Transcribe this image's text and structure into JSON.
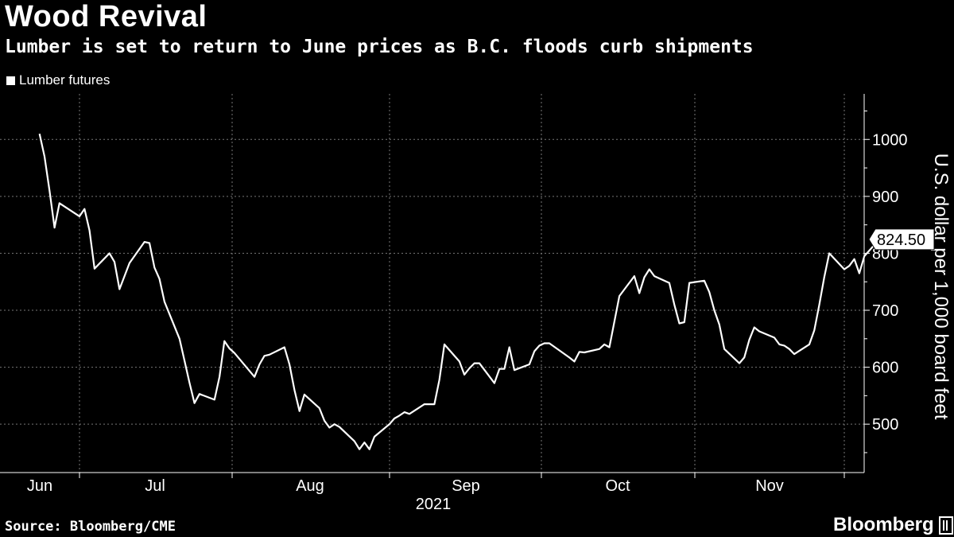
{
  "title": "Wood Revival",
  "subtitle": "Lumber is set to return to June prices as B.C. floods curb shipments",
  "source": "Source: Bloomberg/CME",
  "brand": "Bloomberg",
  "chart_data": {
    "type": "line",
    "title": "Wood Revival",
    "ylabel": "U.S. dollar per 1,000 board feet",
    "xlabel": "2021",
    "year_label": "2021",
    "ylim": [
      415,
      1080
    ],
    "yticks": [
      500,
      600,
      700,
      800,
      900,
      1000
    ],
    "x_month_labels": [
      "Jun",
      "Jul",
      "Aug",
      "Sep",
      "Oct",
      "Nov"
    ],
    "grid": true,
    "legend_position": "top-left",
    "last_value_label": "824.50",
    "series": [
      {
        "name": "Lumber futures",
        "color": "#ffffff",
        "points": [
          [
            "2021-05-24",
            1010
          ],
          [
            "2021-05-25",
            970
          ],
          [
            "2021-05-26",
            910
          ],
          [
            "2021-05-27",
            845
          ],
          [
            "2021-05-28",
            888
          ],
          [
            "2021-06-01",
            865
          ],
          [
            "2021-06-02",
            878
          ],
          [
            "2021-06-03",
            840
          ],
          [
            "2021-06-04",
            773
          ],
          [
            "2021-06-07",
            800
          ],
          [
            "2021-06-08",
            785
          ],
          [
            "2021-06-09",
            737
          ],
          [
            "2021-06-10",
            760
          ],
          [
            "2021-06-11",
            783
          ],
          [
            "2021-06-14",
            820
          ],
          [
            "2021-06-15",
            818
          ],
          [
            "2021-06-16",
            775
          ],
          [
            "2021-06-17",
            755
          ],
          [
            "2021-06-18",
            715
          ],
          [
            "2021-06-21",
            650
          ],
          [
            "2021-06-22",
            612
          ],
          [
            "2021-06-23",
            573
          ],
          [
            "2021-06-24",
            537
          ],
          [
            "2021-06-25",
            553
          ],
          [
            "2021-06-28",
            543
          ],
          [
            "2021-06-29",
            583
          ],
          [
            "2021-06-30",
            646
          ],
          [
            "2021-07-01",
            633
          ],
          [
            "2021-07-02",
            625
          ],
          [
            "2021-07-06",
            583
          ],
          [
            "2021-07-07",
            605
          ],
          [
            "2021-07-08",
            620
          ],
          [
            "2021-07-09",
            622
          ],
          [
            "2021-07-12",
            635
          ],
          [
            "2021-07-13",
            605
          ],
          [
            "2021-07-14",
            560
          ],
          [
            "2021-07-15",
            523
          ],
          [
            "2021-07-16",
            552
          ],
          [
            "2021-07-19",
            528
          ],
          [
            "2021-07-20",
            506
          ],
          [
            "2021-07-21",
            494
          ],
          [
            "2021-07-22",
            500
          ],
          [
            "2021-07-23",
            495
          ],
          [
            "2021-07-26",
            470
          ],
          [
            "2021-07-27",
            456
          ],
          [
            "2021-07-28",
            468
          ],
          [
            "2021-07-29",
            456
          ],
          [
            "2021-07-30",
            478
          ],
          [
            "2021-08-02",
            500
          ],
          [
            "2021-08-03",
            510
          ],
          [
            "2021-08-04",
            515
          ],
          [
            "2021-08-05",
            521
          ],
          [
            "2021-08-06",
            518
          ],
          [
            "2021-08-09",
            535
          ],
          [
            "2021-08-10",
            535
          ],
          [
            "2021-08-11",
            535
          ],
          [
            "2021-08-12",
            578
          ],
          [
            "2021-08-13",
            640
          ],
          [
            "2021-08-16",
            610
          ],
          [
            "2021-08-17",
            587
          ],
          [
            "2021-08-18",
            598
          ],
          [
            "2021-08-19",
            607
          ],
          [
            "2021-08-20",
            607
          ],
          [
            "2021-08-23",
            572
          ],
          [
            "2021-08-24",
            597
          ],
          [
            "2021-08-25",
            597
          ],
          [
            "2021-08-26",
            635
          ],
          [
            "2021-08-27",
            595
          ],
          [
            "2021-08-30",
            605
          ],
          [
            "2021-08-31",
            628
          ],
          [
            "2021-09-01",
            638
          ],
          [
            "2021-09-02",
            642
          ],
          [
            "2021-09-03",
            642
          ],
          [
            "2021-09-07",
            617
          ],
          [
            "2021-09-08",
            610
          ],
          [
            "2021-09-09",
            627
          ],
          [
            "2021-09-10",
            626
          ],
          [
            "2021-09-13",
            632
          ],
          [
            "2021-09-14",
            640
          ],
          [
            "2021-09-15",
            635
          ],
          [
            "2021-09-16",
            680
          ],
          [
            "2021-09-17",
            725
          ],
          [
            "2021-09-20",
            760
          ],
          [
            "2021-09-21",
            730
          ],
          [
            "2021-09-22",
            758
          ],
          [
            "2021-09-23",
            772
          ],
          [
            "2021-09-24",
            760
          ],
          [
            "2021-09-27",
            748
          ],
          [
            "2021-09-28",
            710
          ],
          [
            "2021-09-29",
            677
          ],
          [
            "2021-09-30",
            679
          ],
          [
            "2021-10-01",
            748
          ],
          [
            "2021-10-04",
            752
          ],
          [
            "2021-10-05",
            732
          ],
          [
            "2021-10-06",
            700
          ],
          [
            "2021-10-07",
            675
          ],
          [
            "2021-10-08",
            632
          ],
          [
            "2021-10-11",
            607
          ],
          [
            "2021-10-12",
            617
          ],
          [
            "2021-10-13",
            648
          ],
          [
            "2021-10-14",
            670
          ],
          [
            "2021-10-15",
            663
          ],
          [
            "2021-10-18",
            652
          ],
          [
            "2021-10-19",
            640
          ],
          [
            "2021-10-20",
            638
          ],
          [
            "2021-10-21",
            632
          ],
          [
            "2021-10-22",
            623
          ],
          [
            "2021-10-25",
            640
          ],
          [
            "2021-10-26",
            665
          ],
          [
            "2021-10-27",
            710
          ],
          [
            "2021-10-28",
            758
          ],
          [
            "2021-10-29",
            800
          ],
          [
            "2021-11-01",
            772
          ],
          [
            "2021-11-02",
            778
          ],
          [
            "2021-11-03",
            790
          ],
          [
            "2021-11-04",
            765
          ],
          [
            "2021-11-05",
            795
          ],
          [
            "2021-11-08",
            824.5
          ]
        ]
      }
    ]
  }
}
